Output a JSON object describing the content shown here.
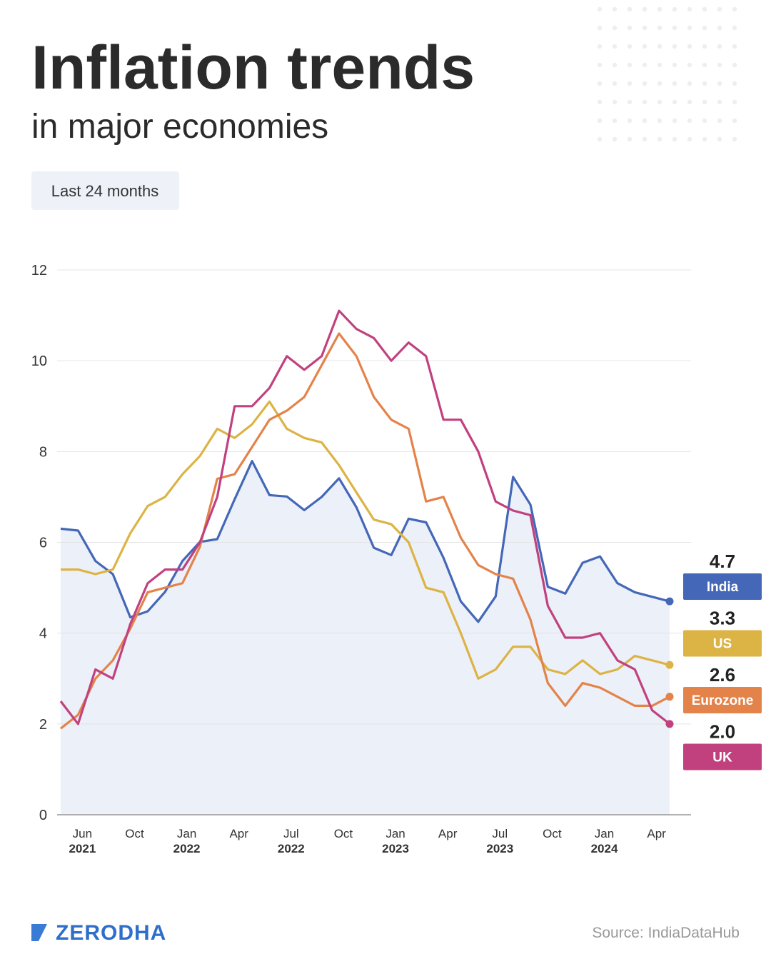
{
  "chart_data": {
    "type": "line",
    "title": "Inflation trends",
    "subtitle": "in major economies",
    "badge": "Last 24 months",
    "source": "Source: IndiaDataHub",
    "brand": "ZERODHA",
    "categories": [
      null,
      "Jun 2021",
      null,
      null,
      "Oct",
      null,
      null,
      "Jan 2022",
      null,
      null,
      "Apr",
      null,
      null,
      "Jul 2022",
      null,
      null,
      "Oct",
      null,
      null,
      "Jan 2023",
      null,
      null,
      "Apr",
      null,
      null,
      "Jul 2023",
      null,
      null,
      "Oct",
      null,
      null,
      "Jan 2024",
      null,
      null,
      "Apr",
      null
    ],
    "ylim": [
      0,
      12
    ],
    "yticks": [
      0,
      2,
      4,
      6,
      8,
      10,
      12
    ],
    "grid": true,
    "series": [
      {
        "name": "India",
        "color": "#4467b8",
        "area": true,
        "values": [
          6.3,
          6.26,
          5.59,
          5.3,
          4.35,
          4.48,
          4.91,
          5.59,
          6.01,
          6.07,
          6.95,
          7.79,
          7.04,
          7.01,
          6.71,
          7.0,
          7.41,
          6.77,
          5.88,
          5.72,
          6.52,
          6.44,
          5.66,
          4.7,
          4.25,
          4.81,
          7.44,
          6.83,
          5.02,
          4.87,
          5.55,
          5.69,
          5.1,
          4.9,
          4.8,
          4.7
        ]
      },
      {
        "name": "US",
        "color": "#dcb345",
        "values": [
          5.4,
          5.4,
          5.3,
          5.4,
          6.2,
          6.8,
          7.0,
          7.5,
          7.9,
          8.5,
          8.3,
          8.6,
          9.1,
          8.5,
          8.3,
          8.2,
          7.7,
          7.1,
          6.5,
          6.4,
          6.0,
          5.0,
          4.9,
          4.0,
          3.0,
          3.2,
          3.7,
          3.7,
          3.2,
          3.1,
          3.4,
          3.1,
          3.2,
          3.5,
          3.4,
          3.3
        ]
      },
      {
        "name": "Eurozone",
        "color": "#e3834a",
        "values": [
          1.9,
          2.2,
          3.0,
          3.4,
          4.1,
          4.9,
          5.0,
          5.1,
          5.9,
          7.4,
          7.5,
          8.1,
          8.7,
          8.9,
          9.2,
          9.9,
          10.6,
          10.1,
          9.2,
          8.7,
          8.5,
          6.9,
          7.0,
          6.1,
          5.5,
          5.3,
          5.2,
          4.3,
          2.9,
          2.4,
          2.9,
          2.8,
          2.6,
          2.4,
          2.4,
          2.6
        ]
      },
      {
        "name": "UK",
        "color": "#c1417f",
        "values": [
          2.5,
          2.0,
          3.2,
          3.0,
          4.2,
          5.1,
          5.4,
          5.4,
          6.0,
          7.0,
          9.0,
          9.0,
          9.4,
          10.1,
          9.8,
          10.1,
          11.1,
          10.7,
          10.5,
          10.0,
          10.4,
          10.1,
          8.7,
          8.7,
          8.0,
          6.9,
          6.7,
          6.6,
          4.6,
          3.9,
          3.9,
          4.0,
          3.4,
          3.2,
          2.3,
          2.0
        ],
        "value_labels": [
          null,
          null,
          null,
          null,
          null,
          null,
          null,
          null,
          null,
          null,
          null,
          null,
          null,
          null,
          null,
          null,
          null,
          null,
          null,
          null,
          null,
          null,
          null,
          null,
          null,
          null,
          null,
          null,
          null,
          null,
          null,
          null,
          null,
          null,
          null,
          "2.0"
        ]
      }
    ]
  }
}
